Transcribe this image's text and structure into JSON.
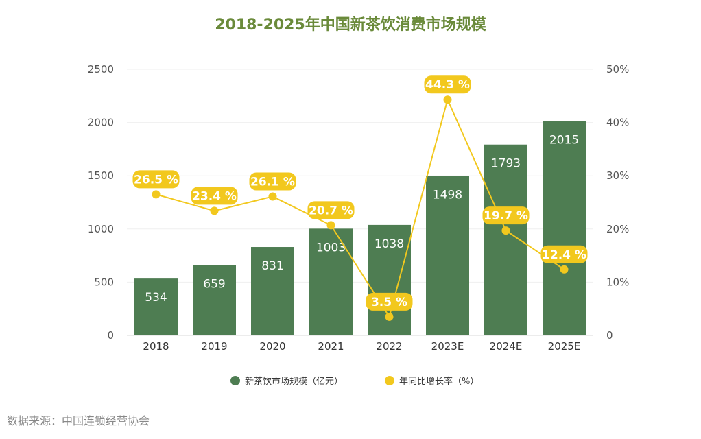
{
  "title": "2018-2025年中国新茶饮消费市场规模",
  "source": "数据来源：中国连锁经营协会",
  "chart_data": {
    "type": "bar+line",
    "categories": [
      "2018",
      "2019",
      "2020",
      "2021",
      "2022",
      "2023E",
      "2024E",
      "2025E"
    ],
    "series": [
      {
        "name": "新茶饮市场规模（亿元）",
        "type": "bar",
        "axis": "left",
        "values": [
          534,
          659,
          831,
          1003,
          1038,
          1498,
          1793,
          2015
        ],
        "color": "#4e7d52"
      },
      {
        "name": "年同比增长率（%）",
        "type": "line",
        "axis": "right",
        "values": [
          26.5,
          23.4,
          26.1,
          20.7,
          3.5,
          44.3,
          19.7,
          12.4
        ],
        "labels": [
          "26.5 %",
          "23.4 %",
          "26.1 %",
          "20.7 %",
          "3.5 %",
          "44.3 %",
          "19.7 %",
          "12.4 %"
        ],
        "color": "#f2c81e"
      }
    ],
    "left_axis": {
      "min": 0,
      "max": 2500,
      "ticks": [
        "0",
        "500",
        "1000",
        "1500",
        "2000",
        "2500"
      ]
    },
    "right_axis": {
      "min": 0,
      "max": 50,
      "ticks": [
        "0",
        "10%",
        "20%",
        "30%",
        "40%",
        "50%"
      ]
    },
    "legend": [
      "新茶饮市场规模（亿元）",
      "年同比增长率（%）"
    ],
    "legend_position": "bottom"
  }
}
